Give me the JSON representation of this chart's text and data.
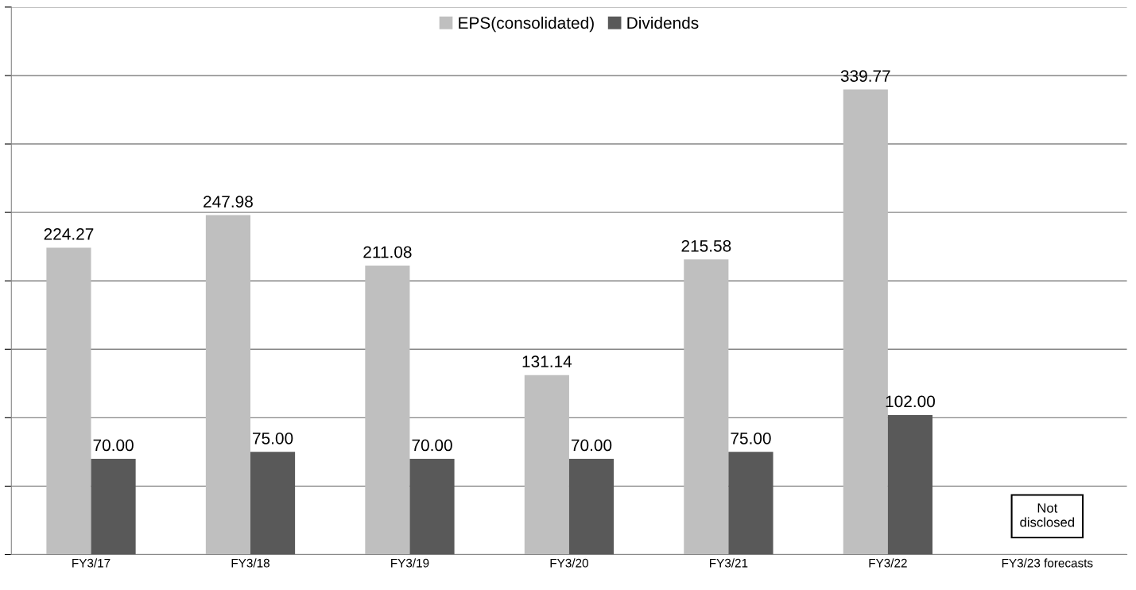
{
  "chart_data": {
    "type": "bar",
    "categories": [
      "FY3/17",
      "FY3/18",
      "FY3/19",
      "FY3/20",
      "FY3/21",
      "FY3/22",
      "FY3/23 forecasts"
    ],
    "series": [
      {
        "name": "EPS(consolidated)",
        "color": "#bfbfbf",
        "values": [
          224.27,
          247.98,
          211.08,
          131.14,
          215.58,
          339.77,
          null
        ],
        "value_labels": [
          "224.27",
          "247.98",
          "211.08",
          "131.14",
          "215.58",
          "339.77",
          null
        ]
      },
      {
        "name": "Dividends",
        "color": "#595959",
        "values": [
          70.0,
          75.0,
          70.0,
          70.0,
          75.0,
          102.0,
          null
        ],
        "value_labels": [
          "70.00",
          "75.00",
          "70.00",
          "70.00",
          "75.00",
          "102.00",
          null
        ]
      }
    ],
    "ylim": [
      0,
      400
    ],
    "yticks": [
      {
        "value": 0,
        "label": null
      },
      {
        "value": 50,
        "label": null
      },
      {
        "value": 100,
        "label": null
      },
      {
        "value": 150,
        "label": null
      },
      {
        "value": 200,
        "label": null
      },
      {
        "value": 250,
        "label": null
      },
      {
        "value": 300,
        "label": null
      },
      {
        "value": 350,
        "label": null
      },
      {
        "value": 400,
        "label": null
      }
    ],
    "grid": "y",
    "legend": "top",
    "tick_labels": "x",
    "annotations": [
      "Not\ndisclosed"
    ]
  }
}
